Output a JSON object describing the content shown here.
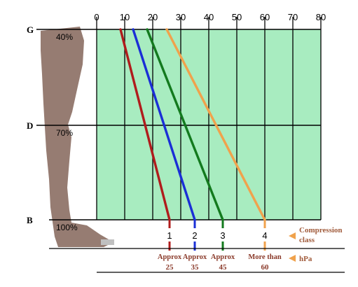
{
  "chart_data": {
    "type": "line",
    "x_ticks": [
      0,
      10,
      20,
      30,
      40,
      50,
      60,
      70,
      80
    ],
    "xlim": [
      0,
      80
    ],
    "levels": [
      {
        "label": "G",
        "percent": "40%"
      },
      {
        "label": "D",
        "percent": "70%"
      },
      {
        "label": "B",
        "percent": "100%"
      }
    ],
    "series": [
      {
        "class_label": "1",
        "approx_label": "Approx",
        "value_label": "25",
        "color": "#b01c1c",
        "top_x": 8.5,
        "bottom_x": 26
      },
      {
        "class_label": "2",
        "approx_label": "Approx",
        "value_label": "35",
        "color": "#1a2fd6",
        "top_x": 13,
        "bottom_x": 35
      },
      {
        "class_label": "3",
        "approx_label": "Approx",
        "value_label": "45",
        "color": "#137a1e",
        "top_x": 18,
        "bottom_x": 45
      },
      {
        "class_label": "4",
        "approx_label": "More than",
        "value_label": "60",
        "color": "#f0a24c",
        "top_x": 25,
        "bottom_x": 60
      }
    ],
    "legend": {
      "compression": [
        "Compression",
        "class"
      ],
      "pressure": "hPa"
    },
    "colors": {
      "grid_fill": "#a8ecc0",
      "grid_line": "#000000",
      "leg_fill": "#967c72",
      "arrow": "#f0a24c"
    }
  }
}
